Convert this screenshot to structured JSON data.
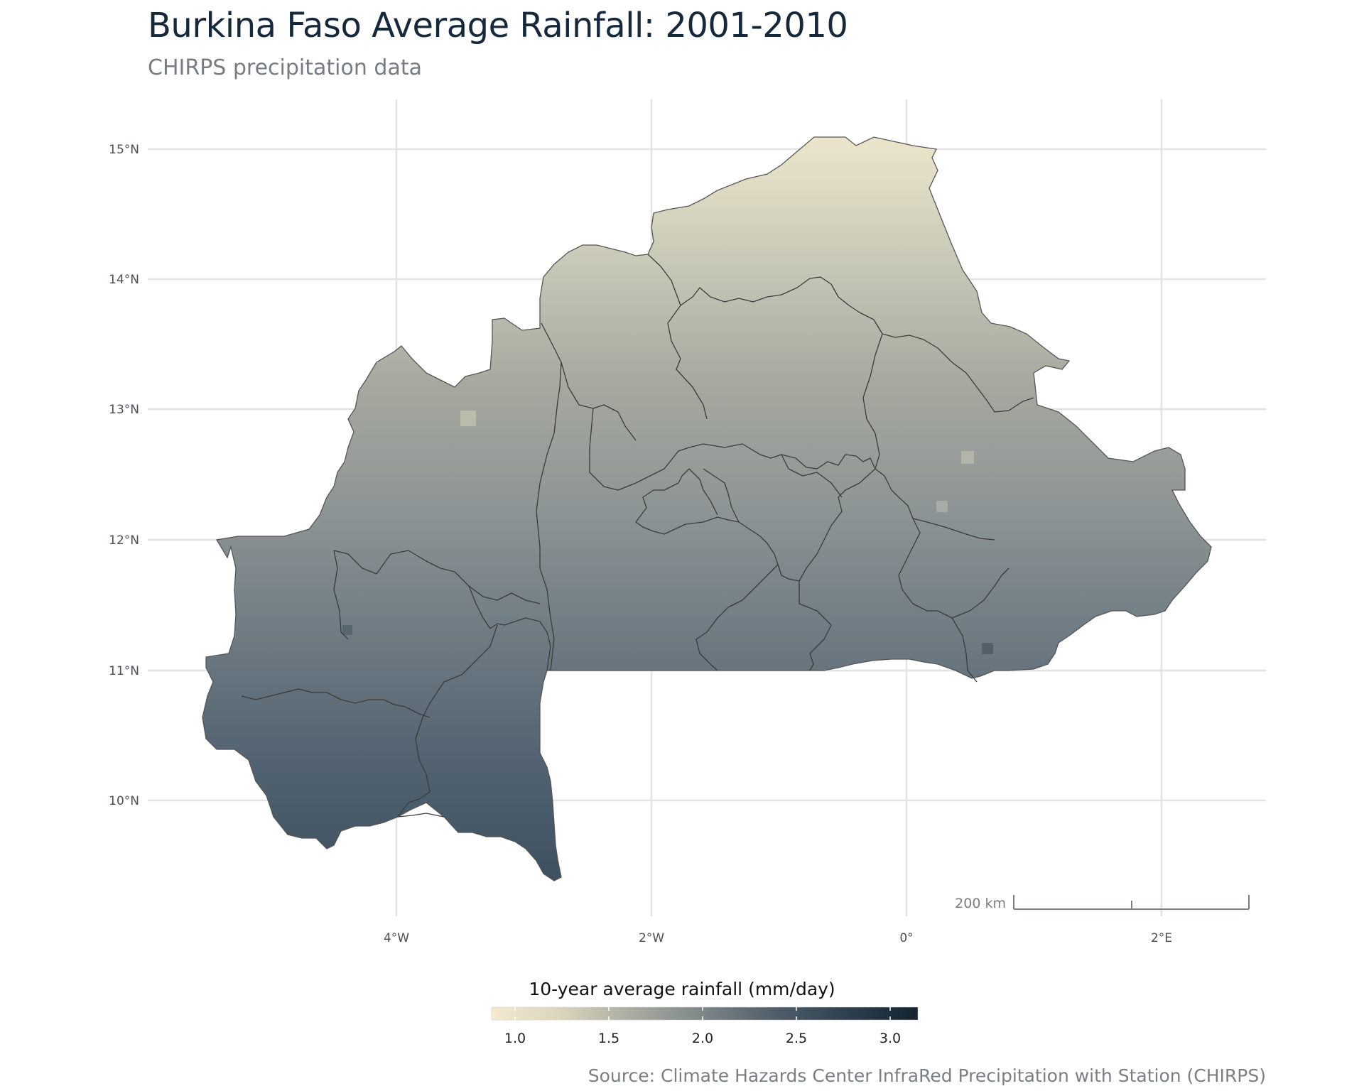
{
  "title": "Burkina Faso Average Rainfall: 2001-2010",
  "subtitle": "CHIRPS precipitation data",
  "source": "Source: Climate Hazards Center InfraRed Precipitation with Station (CHIRPS)",
  "legend": {
    "title": "10-year average rainfall (mm/day)",
    "ticks": [
      "1.0",
      "1.5",
      "2.0",
      "2.5",
      "3.0"
    ],
    "range": [
      0.88,
      3.15
    ],
    "colors": [
      "#f4ead0",
      "#d8d4bc",
      "#a8aba0",
      "#7c8587",
      "#4e5d68",
      "#2e3f4f",
      "#13232f"
    ]
  },
  "axes": {
    "y_ticks": [
      "15°N",
      "14°N",
      "13°N",
      "12°N",
      "11°N",
      "10°N"
    ],
    "x_ticks": [
      "4°W",
      "2°W",
      "0°",
      "2°E"
    ],
    "grid": true
  },
  "scale_bar": {
    "label": "200 km"
  },
  "map": {
    "country": "Burkina Faso",
    "fill_gradient": [
      "#ede6cc",
      "#c9c9b8",
      "#a6a99f",
      "#8e9595",
      "#6f7c84",
      "#536371",
      "#3e5060"
    ]
  }
}
